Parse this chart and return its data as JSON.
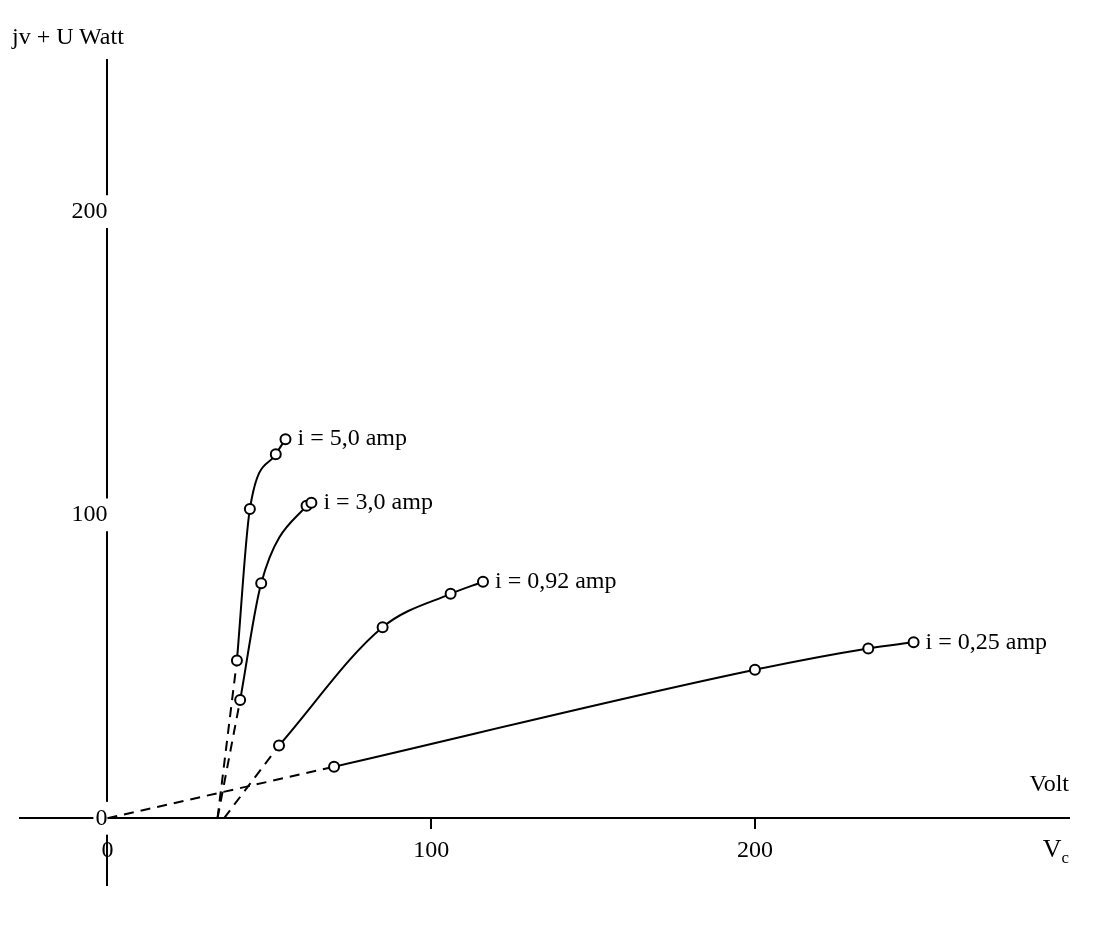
{
  "chart_data": {
    "type": "line",
    "xlabel": "Volt",
    "ylabel": "jv + U Watt",
    "annotations": [
      "V$_{c}$"
    ],
    "xlim": [
      -27,
      297
    ],
    "ylim": [
      -22,
      250
    ],
    "xticks": [
      0,
      100,
      200
    ],
    "yticks": [
      0,
      100,
      200
    ],
    "grid": false,
    "marker": "circle",
    "series": [
      {
        "name": "i = 5,0 amp",
        "color": "#000000",
        "x": [
          40,
          44,
          52,
          55
        ],
        "values": [
          52,
          102,
          120,
          125
        ]
      },
      {
        "name": "i = 3,0 amp",
        "color": "#000000",
        "x": [
          41,
          47.5,
          61.5,
          63
        ],
        "values": [
          39,
          77.5,
          103,
          104
        ]
      },
      {
        "name": "i = 0,92 amp",
        "color": "#000000",
        "x": [
          53,
          85,
          106,
          116
        ],
        "values": [
          24,
          63,
          74,
          78
        ]
      },
      {
        "name": "i = 0,25 amp",
        "color": "#000000",
        "x": [
          70,
          200,
          235,
          249
        ],
        "values": [
          17,
          49,
          56,
          58
        ]
      },
      {
        "color": "#000000",
        "x": [
          34,
          40
        ],
        "values": [
          0,
          52
        ],
        "line_style": "dashed",
        "marker": "none"
      },
      {
        "color": "#000000",
        "x": [
          34,
          41
        ],
        "values": [
          0,
          39
        ],
        "line_style": "dashed",
        "marker": "none"
      },
      {
        "color": "#000000",
        "x": [
          36,
          53
        ],
        "values": [
          0,
          24
        ],
        "line_style": "dashed",
        "marker": "none"
      },
      {
        "color": "#000000",
        "x": [
          0,
          70
        ],
        "values": [
          0,
          17
        ],
        "line_style": "dashed",
        "marker": "none"
      }
    ]
  }
}
